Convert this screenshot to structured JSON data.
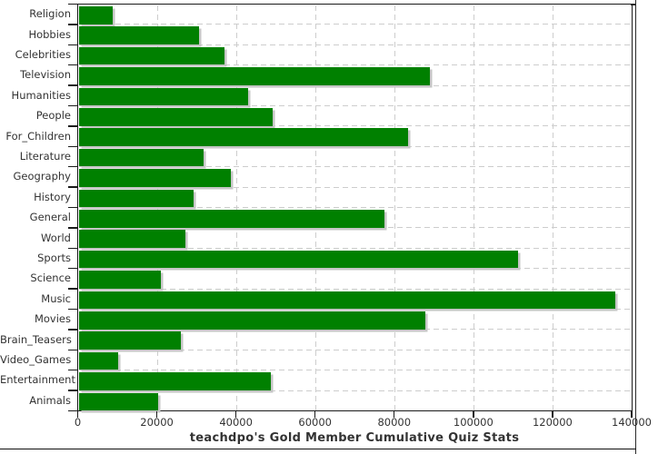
{
  "chart_data": {
    "type": "bar",
    "orientation": "horizontal",
    "title": "teachdpo's Gold Member Cumulative Quiz Stats",
    "categories": [
      "Religion",
      "Hobbies",
      "Celebrities",
      "Television",
      "Humanities",
      "People",
      "For_Children",
      "Literature",
      "Geography",
      "History",
      "General",
      "World",
      "Sports",
      "Science",
      "Music",
      "Movies",
      "Brain_Teasers",
      "Video_Games",
      "Entertainment",
      "Animals"
    ],
    "values": [
      8800,
      30600,
      37100,
      89000,
      43000,
      49200,
      83500,
      31700,
      38600,
      29300,
      77500,
      27200,
      111300,
      21000,
      135800,
      87800,
      26000,
      10300,
      48700,
      20300
    ],
    "xlabel": "",
    "ylabel": "",
    "xlim": [
      0,
      140000
    ],
    "x_ticks": [
      0,
      20000,
      40000,
      60000,
      80000,
      100000,
      120000,
      140000
    ],
    "x_tick_labels": [
      "0",
      "20000",
      "40000",
      "60000",
      "80000",
      "100000",
      "120000",
      "140000"
    ],
    "grid": "dashed-both-directions",
    "legend": "none",
    "colors": {
      "bar": "#008000",
      "bar_shadow": "#c6c6c6",
      "grid": "#cdcdcd",
      "axis": "#1a1a1a",
      "text": "#333333",
      "background": "#ffffff"
    }
  }
}
